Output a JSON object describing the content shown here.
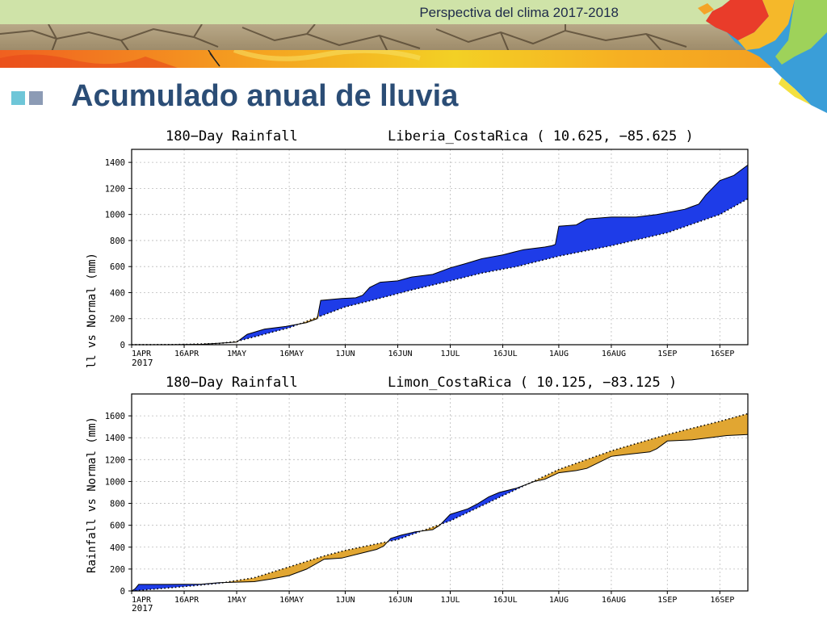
{
  "header": {
    "title": "Perspectiva del clima 2017-2018"
  },
  "slide": {
    "title": "Acumulado anual de lluvia"
  },
  "chart_data": [
    {
      "type": "area",
      "title": "180−Day Rainfall",
      "location": "Liberia_CostaRica ( 10.625, −85.625 )",
      "ylabel": "Rainfall vs Normal (mm)",
      "xlabel": "",
      "ylim": [
        0,
        1500
      ],
      "yticks": [
        0,
        200,
        400,
        600,
        800,
        1000,
        1200,
        1400
      ],
      "xticks": [
        "1APR",
        "16APR",
        "1MAY",
        "16MAY",
        "1JUN",
        "16JUN",
        "1JUL",
        "16JUL",
        "1AUG",
        "16AUG",
        "1SEP",
        "16SEP"
      ],
      "xtick_days": [
        0,
        15,
        30,
        45,
        61,
        76,
        91,
        106,
        122,
        137,
        153,
        168
      ],
      "year_label": "2017",
      "x_days": 176,
      "grid": true,
      "above_normal_color": "#1e3ce8",
      "below_normal_color": "#e1a632",
      "series": [
        {
          "name": "Rainfall",
          "points": [
            [
              0,
              0
            ],
            [
              10,
              0
            ],
            [
              20,
              3
            ],
            [
              30,
              20
            ],
            [
              33,
              80
            ],
            [
              38,
              120
            ],
            [
              44,
              140
            ],
            [
              50,
              170
            ],
            [
              53,
              200
            ],
            [
              54,
              340
            ],
            [
              60,
              355
            ],
            [
              64,
              360
            ],
            [
              66,
              380
            ],
            [
              68,
              440
            ],
            [
              71,
              480
            ],
            [
              76,
              490
            ],
            [
              80,
              520
            ],
            [
              86,
              540
            ],
            [
              91,
              590
            ],
            [
              95,
              620
            ],
            [
              100,
              660
            ],
            [
              106,
              690
            ],
            [
              112,
              730
            ],
            [
              118,
              750
            ],
            [
              120,
              760
            ],
            [
              121,
              770
            ],
            [
              122,
              910
            ],
            [
              127,
              920
            ],
            [
              130,
              965
            ],
            [
              137,
              980
            ],
            [
              144,
              980
            ],
            [
              150,
              1000
            ],
            [
              158,
              1040
            ],
            [
              160,
              1060
            ],
            [
              162,
              1080
            ],
            [
              164,
              1150
            ],
            [
              168,
              1260
            ],
            [
              172,
              1300
            ],
            [
              176,
              1380
            ]
          ]
        },
        {
          "name": "Normal",
          "points": [
            [
              0,
              0
            ],
            [
              15,
              2
            ],
            [
              25,
              10
            ],
            [
              30,
              25
            ],
            [
              35,
              60
            ],
            [
              45,
              130
            ],
            [
              55,
              230
            ],
            [
              61,
              290
            ],
            [
              70,
              350
            ],
            [
              80,
              420
            ],
            [
              91,
              490
            ],
            [
              100,
              550
            ],
            [
              110,
              600
            ],
            [
              122,
              680
            ],
            [
              137,
              760
            ],
            [
              153,
              860
            ],
            [
              168,
              1000
            ],
            [
              176,
              1120
            ]
          ]
        }
      ]
    },
    {
      "type": "area",
      "title": "180−Day Rainfall",
      "location": "Limon_CostaRica ( 10.125, −83.125 )",
      "ylabel": "Rainfall vs Normal (mm)",
      "xlabel": "",
      "ylim": [
        0,
        1800
      ],
      "yticks": [
        0,
        200,
        400,
        600,
        800,
        1000,
        1200,
        1400,
        1600
      ],
      "xticks": [
        "1APR",
        "16APR",
        "1MAY",
        "16MAY",
        "1JUN",
        "16JUN",
        "1JUL",
        "16JUL",
        "1AUG",
        "16AUG",
        "1SEP",
        "16SEP"
      ],
      "xtick_days": [
        0,
        15,
        30,
        45,
        61,
        76,
        91,
        106,
        122,
        137,
        153,
        168
      ],
      "year_label": "2017",
      "x_days": 176,
      "grid": true,
      "above_normal_color": "#1e3ce8",
      "below_normal_color": "#e1a632",
      "series": [
        {
          "name": "Rainfall",
          "points": [
            [
              0,
              0
            ],
            [
              1,
              20
            ],
            [
              2,
              60
            ],
            [
              10,
              60
            ],
            [
              20,
              62
            ],
            [
              25,
              75
            ],
            [
              35,
              85
            ],
            [
              40,
              110
            ],
            [
              45,
              140
            ],
            [
              50,
              200
            ],
            [
              55,
              290
            ],
            [
              60,
              300
            ],
            [
              65,
              340
            ],
            [
              70,
              380
            ],
            [
              72,
              410
            ],
            [
              74,
              480
            ],
            [
              77,
              510
            ],
            [
              81,
              540
            ],
            [
              86,
              560
            ],
            [
              88,
              600
            ],
            [
              91,
              700
            ],
            [
              96,
              750
            ],
            [
              99,
              800
            ],
            [
              102,
              860
            ],
            [
              105,
              900
            ],
            [
              110,
              940
            ],
            [
              115,
              1000
            ],
            [
              118,
              1020
            ],
            [
              122,
              1080
            ],
            [
              127,
              1100
            ],
            [
              130,
              1120
            ],
            [
              137,
              1230
            ],
            [
              142,
              1250
            ],
            [
              148,
              1270
            ],
            [
              150,
              1300
            ],
            [
              153,
              1370
            ],
            [
              160,
              1380
            ],
            [
              165,
              1400
            ],
            [
              170,
              1420
            ],
            [
              176,
              1430
            ]
          ]
        },
        {
          "name": "Normal",
          "points": [
            [
              0,
              0
            ],
            [
              15,
              40
            ],
            [
              25,
              70
            ],
            [
              35,
              120
            ],
            [
              45,
              220
            ],
            [
              55,
              320
            ],
            [
              61,
              370
            ],
            [
              76,
              470
            ],
            [
              91,
              640
            ],
            [
              106,
              870
            ],
            [
              122,
              1110
            ],
            [
              137,
              1280
            ],
            [
              153,
              1430
            ],
            [
              168,
              1550
            ],
            [
              176,
              1620
            ]
          ]
        }
      ]
    }
  ]
}
